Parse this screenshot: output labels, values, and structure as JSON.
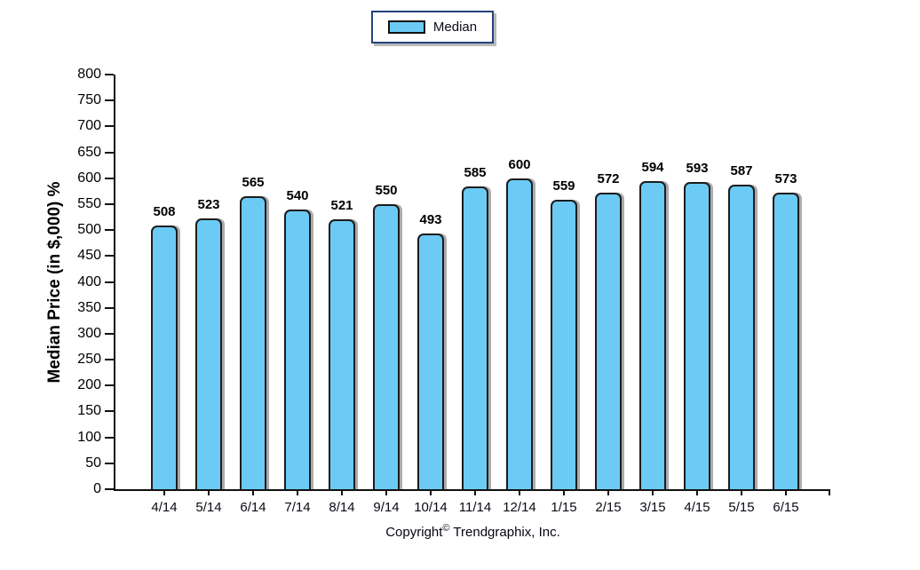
{
  "legend": {
    "label": "Median",
    "swatch_color": "#6bcbf5"
  },
  "y_axis": {
    "title": "Median Price (in $,000) %"
  },
  "footer": {
    "pre": "Copyright",
    "symbol": "©",
    "post": " Trendgraphix, Inc."
  },
  "colors": {
    "bar_fill": "#6bcbf5",
    "bar_border": "#1c1c1c",
    "legend_border": "#24427c",
    "axis": "#111111",
    "text": "#000000"
  },
  "chart_data": {
    "type": "bar",
    "title": "",
    "xlabel": "",
    "ylabel": "Median Price (in $,000) %",
    "categories": [
      "4/14",
      "5/14",
      "6/14",
      "7/14",
      "8/14",
      "9/14",
      "10/14",
      "11/14",
      "12/14",
      "1/15",
      "2/15",
      "3/15",
      "4/15",
      "5/15",
      "6/15"
    ],
    "series": [
      {
        "name": "Median",
        "values": [
          508,
          523,
          565,
          540,
          521,
          550,
          493,
          585,
          600,
          559,
          572,
          594,
          593,
          587,
          573
        ]
      }
    ],
    "ylim": [
      0,
      800
    ],
    "yticks": [
      0,
      50,
      100,
      150,
      200,
      250,
      300,
      350,
      400,
      450,
      500,
      550,
      600,
      650,
      700,
      750,
      800
    ],
    "grid": false,
    "legend_position": "top-center",
    "value_labels": true
  }
}
